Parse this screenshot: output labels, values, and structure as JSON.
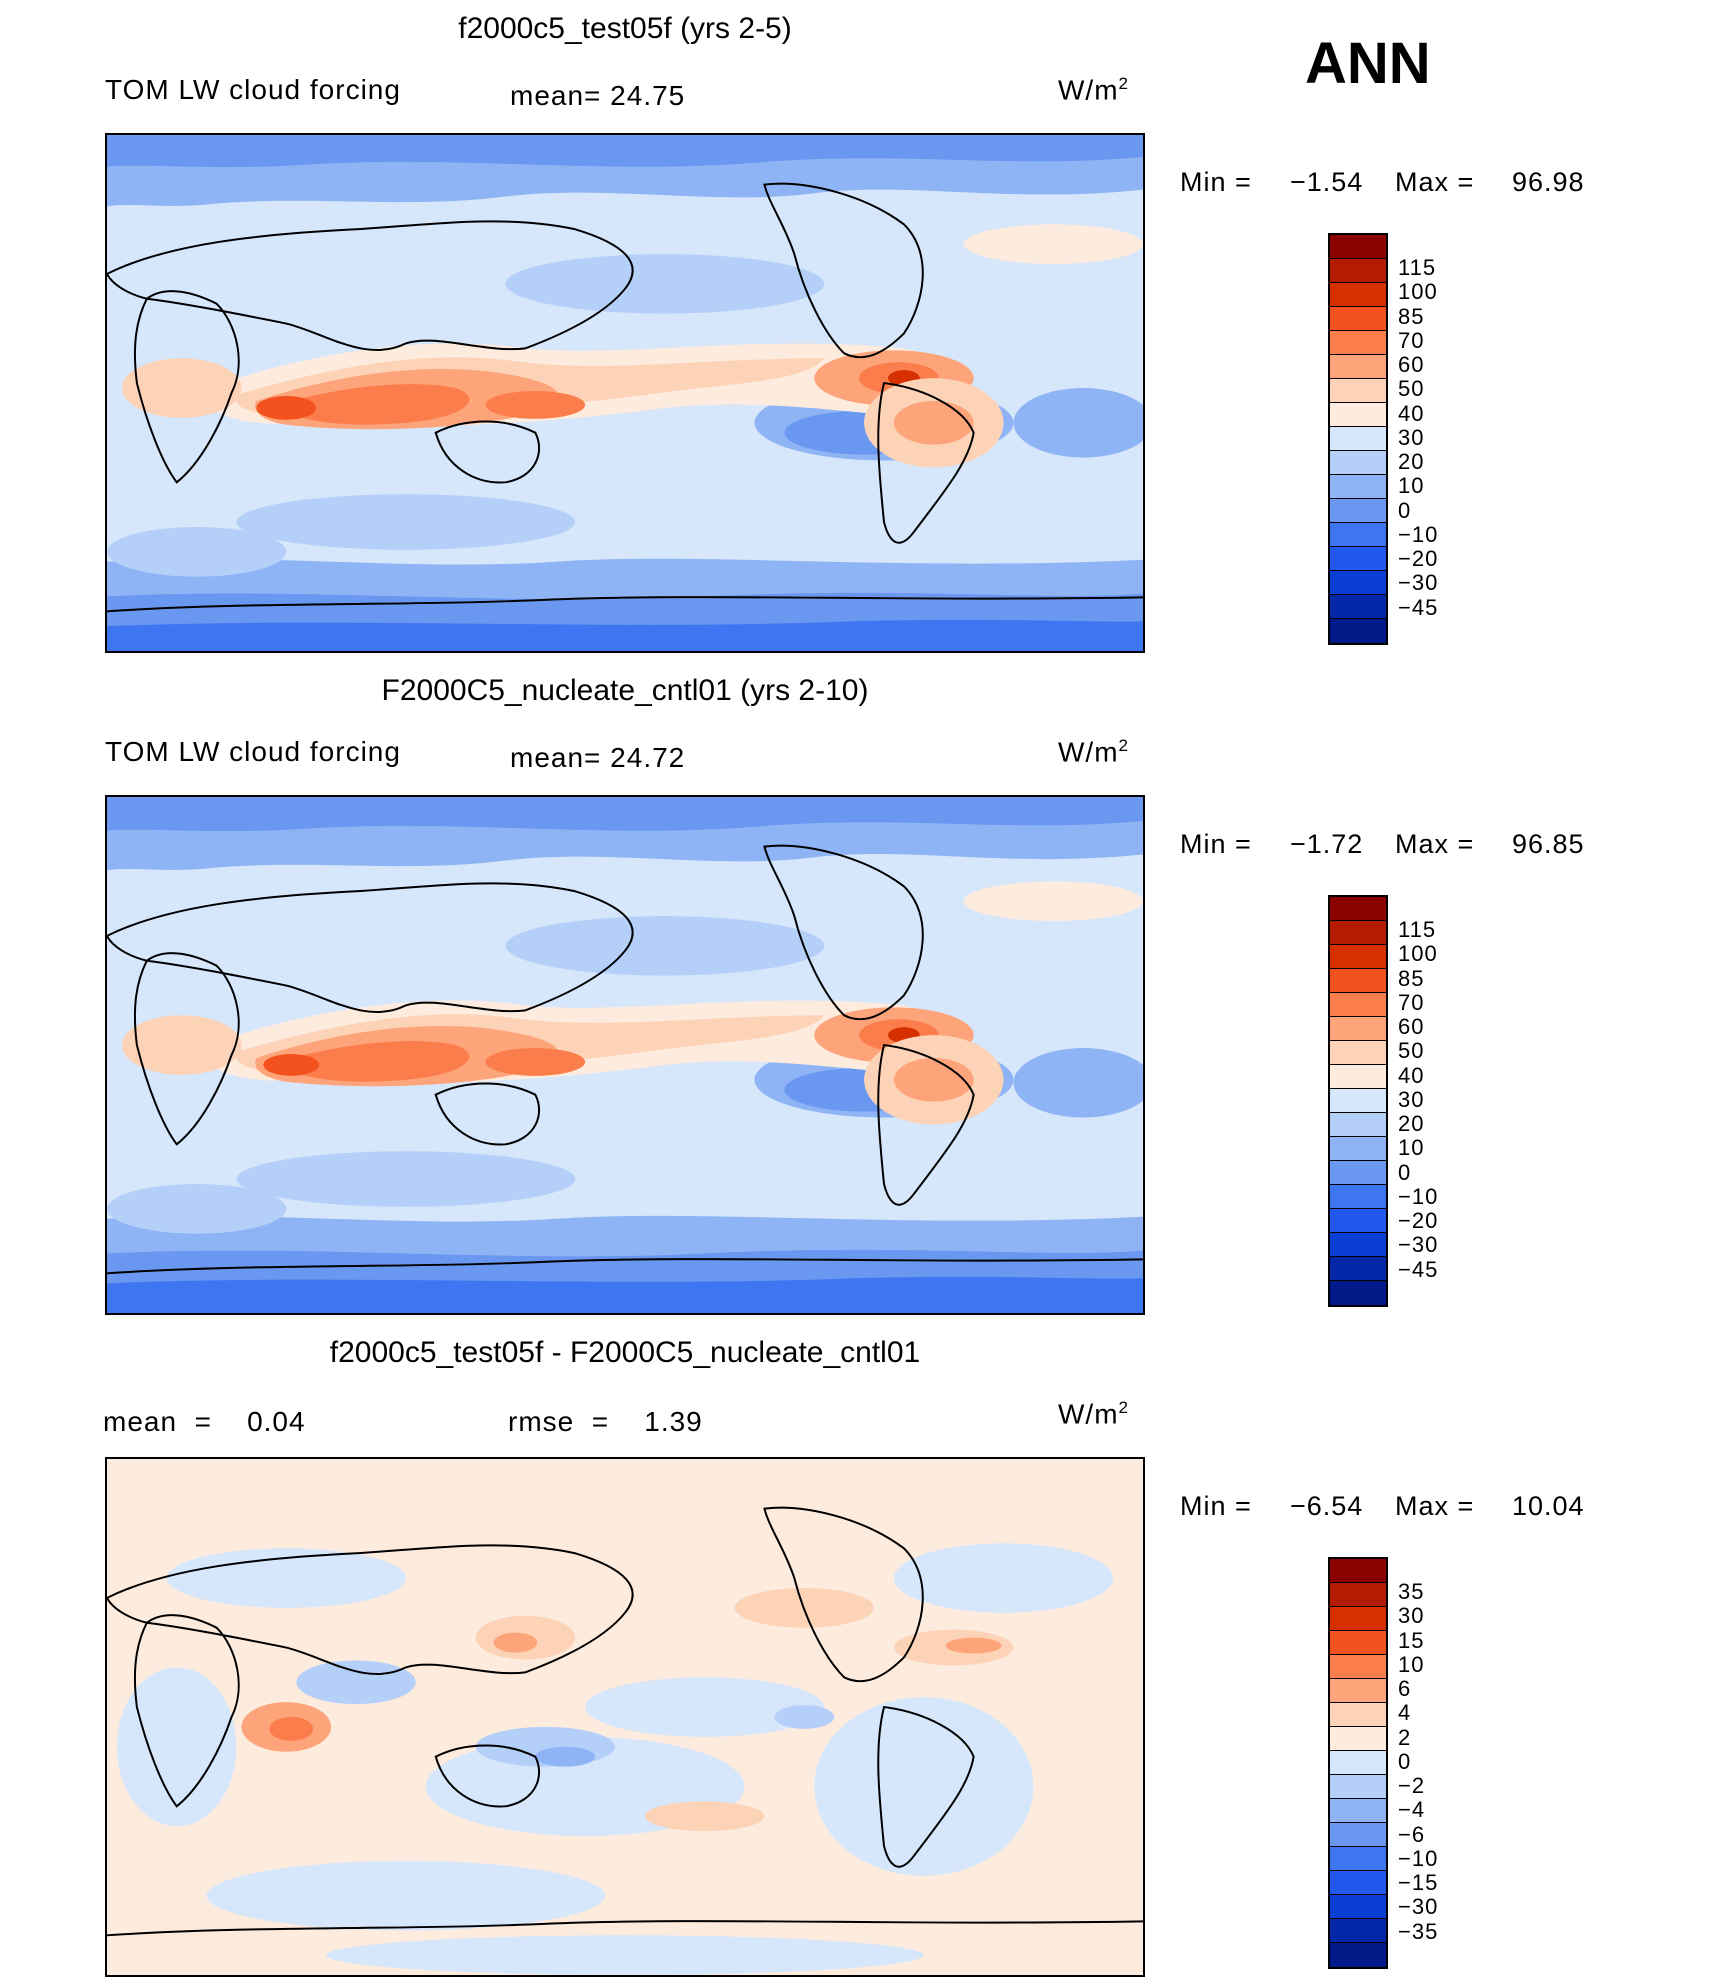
{
  "season": "ANN",
  "colors": {
    "main_scale": [
      "#8b0000",
      "#b41c00",
      "#d63000",
      "#f3521f",
      "#fc7d4c",
      "#fda47a",
      "#fdd3b8",
      "#fdebde",
      "#d6e6fb",
      "#b5d0f8",
      "#8fb4f5",
      "#6a97f0",
      "#3d76f0",
      "#2158f0",
      "#0b3ed2",
      "#0427a8",
      "#001a88"
    ],
    "diff_scale": [
      "#8b0000",
      "#b41c00",
      "#d63000",
      "#f3521f",
      "#fc7d4c",
      "#fda47a",
      "#fdd3b8",
      "#fdebde",
      "#d6e6fb",
      "#b5d0f8",
      "#8fb4f5",
      "#6a97f0",
      "#3d76f0",
      "#2158f0",
      "#0b3ed2",
      "#0427a8",
      "#001a88"
    ]
  },
  "panels": [
    {
      "title": "f2000c5_test05f (yrs 2-5)",
      "left_label": "TOM LW cloud forcing",
      "mean_text": "mean=  24.75",
      "units_base": "W/m",
      "units_exp": "2",
      "min_label": "Min  =",
      "min_value": "−1.54",
      "max_label": "Max  =",
      "max_value": "96.98",
      "ticks": [
        "115",
        "100",
        "85",
        "70",
        "60",
        "50",
        "40",
        "30",
        "20",
        "10",
        "0",
        "−10",
        "−20",
        "−30",
        "−45"
      ]
    },
    {
      "title": "F2000C5_nucleate_cntl01 (yrs 2-10)",
      "left_label": "TOM LW cloud forcing",
      "mean_text": "mean=  24.72",
      "units_base": "W/m",
      "units_exp": "2",
      "min_label": "Min  =",
      "min_value": "−1.72",
      "max_label": "Max  =",
      "max_value": "96.85",
      "ticks": [
        "115",
        "100",
        "85",
        "70",
        "60",
        "50",
        "40",
        "30",
        "20",
        "10",
        "0",
        "−10",
        "−20",
        "−30",
        "−45"
      ]
    },
    {
      "title": "f2000c5_test05f - F2000C5_nucleate_cntl01",
      "left_label": "mean  =    0.04",
      "mean_text": "rmse  =    1.39",
      "units_base": "W/m",
      "units_exp": "2",
      "min_label": "Min  =",
      "min_value": "−6.54",
      "max_label": "Max  =",
      "max_value": "10.04",
      "ticks": [
        "35",
        "30",
        "15",
        "10",
        "6",
        "4",
        "2",
        "0",
        "−2",
        "−4",
        "−6",
        "−10",
        "−15",
        "−30",
        "−35"
      ]
    }
  ]
}
